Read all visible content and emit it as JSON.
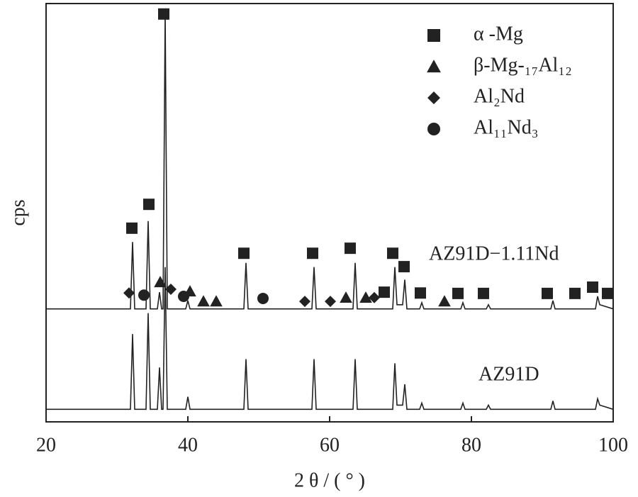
{
  "chart_data": {
    "type": "line",
    "x_label": "2 θ / ( ° )",
    "y_label": "cps",
    "xlim": [
      20,
      100
    ],
    "xticks": [
      20,
      40,
      60,
      80,
      100
    ],
    "ylim": [
      0,
      100
    ],
    "x": [
      20,
      31.9,
      32.2,
      32.5,
      34.1,
      34.4,
      34.7,
      35.7,
      36.0,
      36.3,
      36.5,
      36.8,
      37.1,
      39.7,
      40.0,
      40.3,
      47.9,
      48.2,
      48.5,
      57.5,
      57.8,
      58.1,
      63.3,
      63.6,
      63.9,
      68.9,
      69.2,
      69.5,
      70.3,
      70.6,
      70.9,
      72.7,
      73.0,
      73.3,
      78.5,
      78.8,
      79.1,
      82.1,
      82.4,
      82.7,
      91.2,
      91.5,
      91.8,
      97.5,
      97.8,
      98.1,
      100
    ],
    "series": [
      {
        "name": "AZ91D−1.11Nd",
        "color": "#222222",
        "values": [
          27,
          27,
          43,
          27,
          27,
          48,
          27,
          27,
          31,
          27,
          27,
          98,
          27,
          27,
          29,
          27,
          27,
          38,
          27,
          27,
          37,
          27,
          27,
          38,
          27,
          27,
          37,
          28,
          28,
          34,
          27,
          27,
          28.5,
          27,
          27,
          28.5,
          27,
          27,
          28,
          27,
          27,
          29,
          27,
          27,
          30,
          28,
          27
        ]
      },
      {
        "name": "AZ91D",
        "color": "#222222",
        "values": [
          3,
          3,
          21,
          3,
          3,
          26,
          3,
          3,
          13,
          3,
          3,
          37,
          3,
          3,
          6,
          3,
          3,
          15,
          3,
          3,
          15,
          3,
          3,
          15,
          3,
          3,
          14,
          4,
          4,
          9,
          3,
          3,
          4.5,
          3,
          3,
          4.5,
          3,
          3,
          4,
          3,
          3,
          5,
          3,
          3,
          5.5,
          4,
          3
        ]
      }
    ],
    "markers": [
      {
        "name": "α -Mg",
        "shape": "square",
        "color": "#222222",
        "x": [
          32.1,
          34.5,
          36.6,
          47.9,
          57.6,
          62.9,
          68.9,
          70.5,
          67.7,
          72.8,
          78.1,
          81.7,
          90.7,
          94.6,
          97.1,
          99.2
        ],
        "values": [
          46.3,
          52,
          97.5,
          40.3,
          40.3,
          41.5,
          40.3,
          37.1,
          31,
          30.8,
          30.7,
          30.7,
          30.7,
          30.7,
          32.2,
          30.7
        ]
      },
      {
        "name": "β-Mg-₁₇Al₁₂",
        "shape": "triangle",
        "color": "#222222",
        "x": [
          36.1,
          40.3,
          42.2,
          44,
          62.3,
          65.1,
          76.2
        ],
        "values": [
          33.4,
          31.2,
          28.8,
          28.8,
          29.7,
          29.7,
          28.8
        ]
      },
      {
        "name": "Al₂Nd",
        "shape": "diamond",
        "color": "#222222",
        "x": [
          31.7,
          37.6,
          56.5,
          60.1,
          66.3
        ],
        "values": [
          30.8,
          31.7,
          28.8,
          28.8,
          29.7
        ]
      },
      {
        "name": "Al₁₁Nd₃",
        "shape": "circle",
        "color": "#222222",
        "x": [
          33.8,
          39.4,
          50.6
        ],
        "values": [
          30.3,
          30,
          29.5
        ]
      }
    ]
  }
}
